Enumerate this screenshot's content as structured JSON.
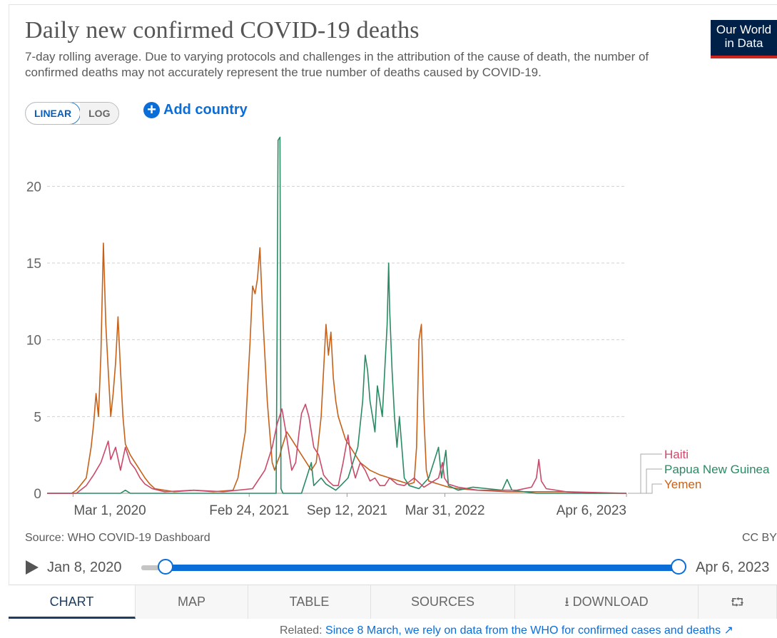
{
  "header": {
    "title": "Daily new confirmed COVID-19 deaths",
    "subtitle": "7-day rolling average. Due to varying protocols and challenges in the attribution of the cause of death, the number of confirmed deaths may not accurately represent the true number of deaths caused by COVID-19.",
    "logo_line1": "Our World",
    "logo_line2": "in Data"
  },
  "controls": {
    "linear_label": "LINEAR",
    "log_label": "LOG",
    "add_country_label": "Add country"
  },
  "colors": {
    "haiti": "#c94a6a",
    "png": "#2a8a64",
    "yemen": "#c6611a",
    "accent": "#0a6dd8",
    "grid": "#d0d0d0"
  },
  "chart_data": {
    "type": "line",
    "title": "Daily new confirmed COVID-19 deaths",
    "ylabel": "",
    "ylim": [
      0,
      23.5
    ],
    "yticks": [
      0,
      5,
      10,
      15,
      20
    ],
    "y_gridlines": true,
    "x_range": [
      "2020-01-08",
      "2023-04-06"
    ],
    "xticks": [
      "Mar 1, 2020",
      "Feb 24, 2021",
      "Sep 12, 2021",
      "Mar 31, 2022",
      "Apr 6, 2023"
    ],
    "xtick_days": [
      53,
      413,
      613,
      813,
      1184
    ],
    "legend_position": "right",
    "series": [
      {
        "name": "Haiti",
        "color": "#c94a6a",
        "points": [
          [
            0,
            0
          ],
          [
            60,
            0
          ],
          [
            80,
            0.5
          ],
          [
            95,
            1.2
          ],
          [
            110,
            2
          ],
          [
            125,
            3.4
          ],
          [
            130,
            2.2
          ],
          [
            140,
            3
          ],
          [
            150,
            1.5
          ],
          [
            160,
            3
          ],
          [
            170,
            2
          ],
          [
            180,
            1.6
          ],
          [
            190,
            1
          ],
          [
            200,
            0.6
          ],
          [
            215,
            0.3
          ],
          [
            240,
            0.1
          ],
          [
            300,
            0.2
          ],
          [
            360,
            0.1
          ],
          [
            420,
            0.3
          ],
          [
            445,
            1.5
          ],
          [
            460,
            3
          ],
          [
            470,
            4.5
          ],
          [
            480,
            5.5
          ],
          [
            488,
            4
          ],
          [
            495,
            2.5
          ],
          [
            500,
            1.5
          ],
          [
            508,
            2
          ],
          [
            515,
            4
          ],
          [
            520,
            5.2
          ],
          [
            528,
            5.8
          ],
          [
            535,
            5
          ],
          [
            545,
            3
          ],
          [
            555,
            2.5
          ],
          [
            565,
            1.2
          ],
          [
            575,
            0.8
          ],
          [
            585,
            0.5
          ],
          [
            595,
            0.5
          ],
          [
            605,
            2
          ],
          [
            615,
            3.8
          ],
          [
            622,
            2
          ],
          [
            630,
            1
          ],
          [
            640,
            2
          ],
          [
            650,
            1.5
          ],
          [
            660,
            0.8
          ],
          [
            670,
            1
          ],
          [
            680,
            0.5
          ],
          [
            690,
            0.5
          ],
          [
            700,
            1
          ],
          [
            715,
            0.6
          ],
          [
            730,
            0.5
          ],
          [
            750,
            1
          ],
          [
            770,
            0.4
          ],
          [
            790,
            0.8
          ],
          [
            800,
            1
          ],
          [
            808,
            2
          ],
          [
            812,
            1
          ],
          [
            820,
            0.6
          ],
          [
            840,
            0.4
          ],
          [
            880,
            0.2
          ],
          [
            960,
            0.2
          ],
          [
            990,
            0.4
          ],
          [
            1000,
            1
          ],
          [
            1005,
            2.2
          ],
          [
            1010,
            0.8
          ],
          [
            1020,
            0.3
          ],
          [
            1060,
            0.1
          ],
          [
            1184,
            0
          ]
        ]
      },
      {
        "name": "Papua New Guinea",
        "color": "#2a8a64",
        "points": [
          [
            0,
            0
          ],
          [
            150,
            0
          ],
          [
            160,
            0.2
          ],
          [
            170,
            0
          ],
          [
            300,
            0
          ],
          [
            400,
            0
          ],
          [
            468,
            0
          ],
          [
            470,
            10
          ],
          [
            472,
            23
          ],
          [
            476,
            23.2
          ],
          [
            478,
            0.3
          ],
          [
            482,
            0
          ],
          [
            520,
            0
          ],
          [
            530,
            1
          ],
          [
            540,
            2
          ],
          [
            545,
            0.5
          ],
          [
            560,
            1
          ],
          [
            570,
            0.6
          ],
          [
            590,
            0.2
          ],
          [
            600,
            0.5
          ],
          [
            615,
            1
          ],
          [
            625,
            2
          ],
          [
            635,
            3
          ],
          [
            645,
            6
          ],
          [
            650,
            9
          ],
          [
            655,
            8
          ],
          [
            660,
            6
          ],
          [
            665,
            5
          ],
          [
            670,
            4
          ],
          [
            675,
            7
          ],
          [
            680,
            6
          ],
          [
            685,
            5
          ],
          [
            690,
            8
          ],
          [
            695,
            11
          ],
          [
            698,
            15
          ],
          [
            700,
            12
          ],
          [
            705,
            8
          ],
          [
            710,
            5
          ],
          [
            715,
            3
          ],
          [
            720,
            5
          ],
          [
            725,
            3
          ],
          [
            730,
            1
          ],
          [
            740,
            0.5
          ],
          [
            760,
            0.3
          ],
          [
            780,
            1
          ],
          [
            790,
            2
          ],
          [
            800,
            3
          ],
          [
            806,
            1
          ],
          [
            815,
            2.8
          ],
          [
            820,
            0.5
          ],
          [
            840,
            0.2
          ],
          [
            870,
            0.4
          ],
          [
            900,
            0.3
          ],
          [
            930,
            0.2
          ],
          [
            940,
            0.9
          ],
          [
            950,
            0.2
          ],
          [
            1000,
            0
          ],
          [
            1184,
            0
          ]
        ]
      },
      {
        "name": "Yemen",
        "color": "#c6611a",
        "points": [
          [
            0,
            0
          ],
          [
            50,
            0
          ],
          [
            60,
            0.2
          ],
          [
            70,
            0.6
          ],
          [
            80,
            1
          ],
          [
            85,
            2
          ],
          [
            90,
            3
          ],
          [
            95,
            4.5
          ],
          [
            100,
            6.5
          ],
          [
            105,
            5
          ],
          [
            110,
            9
          ],
          [
            115,
            16.3
          ],
          [
            120,
            11
          ],
          [
            125,
            8
          ],
          [
            130,
            5
          ],
          [
            135,
            6.5
          ],
          [
            140,
            8.5
          ],
          [
            145,
            11.5
          ],
          [
            150,
            8
          ],
          [
            155,
            5
          ],
          [
            160,
            3.2
          ],
          [
            170,
            2.5
          ],
          [
            180,
            2
          ],
          [
            190,
            1.5
          ],
          [
            200,
            1
          ],
          [
            210,
            0.6
          ],
          [
            220,
            0.3
          ],
          [
            240,
            0.2
          ],
          [
            260,
            0.1
          ],
          [
            300,
            0.2
          ],
          [
            340,
            0.1
          ],
          [
            380,
            0.2
          ],
          [
            390,
            1
          ],
          [
            395,
            2
          ],
          [
            400,
            3
          ],
          [
            405,
            4
          ],
          [
            410,
            7
          ],
          [
            415,
            10
          ],
          [
            420,
            13.5
          ],
          [
            425,
            13
          ],
          [
            430,
            14
          ],
          [
            435,
            16
          ],
          [
            440,
            12
          ],
          [
            445,
            9
          ],
          [
            450,
            6
          ],
          [
            455,
            4
          ],
          [
            460,
            2
          ],
          [
            465,
            1.5
          ],
          [
            470,
            2
          ],
          [
            475,
            2.4
          ],
          [
            480,
            3
          ],
          [
            490,
            4
          ],
          [
            500,
            3.5
          ],
          [
            510,
            3
          ],
          [
            520,
            2.5
          ],
          [
            530,
            2
          ],
          [
            540,
            1.5
          ],
          [
            550,
            2
          ],
          [
            560,
            5
          ],
          [
            565,
            8
          ],
          [
            570,
            11
          ],
          [
            575,
            9
          ],
          [
            580,
            10.5
          ],
          [
            585,
            7.5
          ],
          [
            590,
            6
          ],
          [
            595,
            5
          ],
          [
            600,
            4.5
          ],
          [
            610,
            3.5
          ],
          [
            620,
            3
          ],
          [
            630,
            2.5
          ],
          [
            640,
            2
          ],
          [
            660,
            1.5
          ],
          [
            680,
            1.2
          ],
          [
            700,
            1
          ],
          [
            720,
            0.8
          ],
          [
            740,
            0.6
          ],
          [
            750,
            0.7
          ],
          [
            755,
            3
          ],
          [
            760,
            10
          ],
          [
            765,
            11
          ],
          [
            770,
            5
          ],
          [
            775,
            1.5
          ],
          [
            780,
            0.8
          ],
          [
            800,
            0.6
          ],
          [
            820,
            0.4
          ],
          [
            840,
            0.3
          ],
          [
            880,
            0.2
          ],
          [
            940,
            0.1
          ],
          [
            1000,
            0.1
          ],
          [
            1060,
            0.1
          ],
          [
            1100,
            0
          ],
          [
            1184,
            0
          ]
        ]
      }
    ]
  },
  "footer": {
    "source": "Source: WHO COVID-19 Dashboard",
    "license": "CC BY",
    "time_start": "Jan 8, 2020",
    "time_end": "Apr 6, 2023"
  },
  "tabs": [
    {
      "label": "CHART"
    },
    {
      "label": "MAP"
    },
    {
      "label": "TABLE"
    },
    {
      "label": "SOURCES"
    },
    {
      "label": "DOWNLOAD"
    },
    {
      "label": ""
    }
  ],
  "related": {
    "prefix": "Related:",
    "link": "Since 8 March, we rely on data from the WHO for confirmed cases and deaths"
  }
}
